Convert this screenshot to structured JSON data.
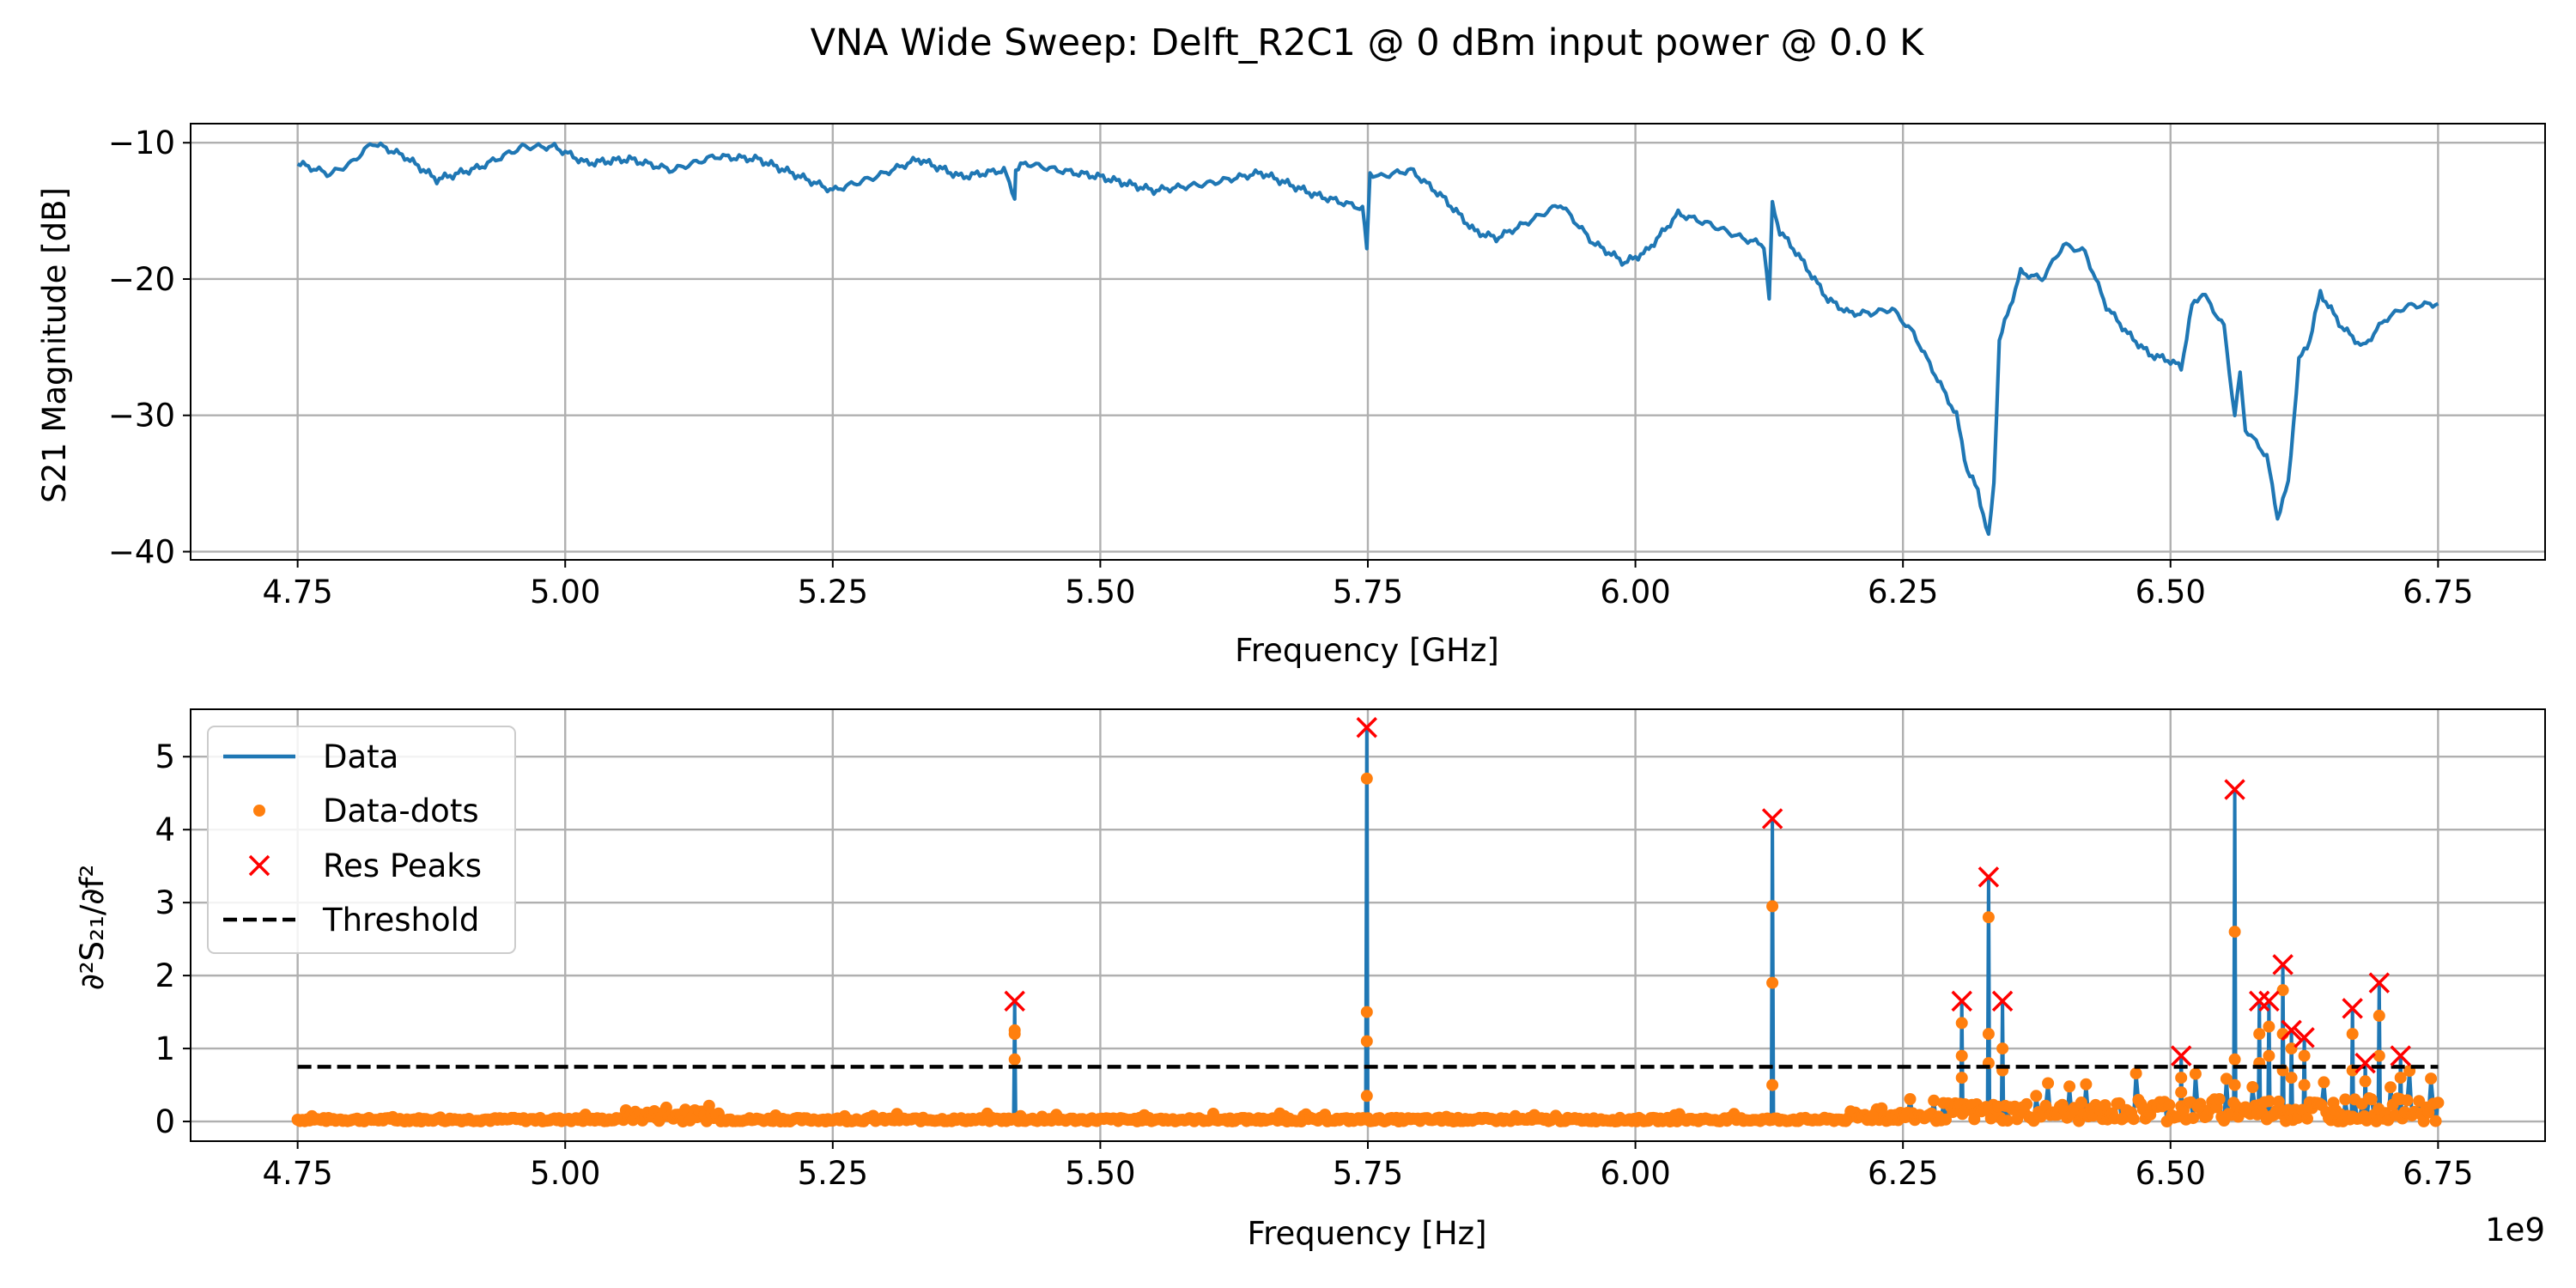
{
  "figure": {
    "title": "VNA Wide Sweep: Delft_R2C1 @ 0 dBm input power @ 0.0 K"
  },
  "colors": {
    "data": "#1f77b4",
    "dots": "#ff7f0e",
    "peaks": "#ff0000",
    "threshold": "#000000",
    "grid": "#b0b0b0"
  },
  "chart_data": [
    {
      "type": "line",
      "xlabel": "Frequency [GHz]",
      "ylabel": "S21 Magnitude [dB]",
      "xlim": [
        4.65,
        6.85
      ],
      "ylim": [
        -40.6,
        -8.6
      ],
      "xticks": [
        4.75,
        5.0,
        5.25,
        5.5,
        5.75,
        6.0,
        6.25,
        6.5,
        6.75
      ],
      "xtick_labels": [
        "4.75",
        "5.00",
        "5.25",
        "5.50",
        "5.75",
        "6.00",
        "6.25",
        "6.50",
        "6.75"
      ],
      "yticks": [
        -40,
        -30,
        -20,
        -10
      ],
      "ytick_labels": [
        "−40",
        "−30",
        "−20",
        "−10"
      ],
      "grid": true,
      "series": [
        {
          "x": [
            4.75,
            4.78,
            4.8,
            4.82,
            4.85,
            4.88,
            4.92,
            4.96,
            4.99,
            5.02,
            5.06,
            5.1,
            5.14,
            5.18,
            5.22,
            5.25,
            5.29,
            5.33,
            5.37,
            5.41,
            5.42,
            5.421,
            5.43,
            5.46,
            5.5,
            5.55,
            5.6,
            5.65,
            5.7,
            5.745,
            5.749,
            5.752,
            5.76,
            5.79,
            5.82,
            5.85,
            5.87,
            5.9,
            5.93,
            5.96,
            5.99,
            6.01,
            6.04,
            6.07,
            6.1,
            6.12,
            6.125,
            6.128,
            6.135,
            6.15,
            6.18,
            6.2,
            6.22,
            6.24,
            6.26,
            6.28,
            6.3,
            6.31,
            6.32,
            6.33,
            6.335,
            6.34,
            6.36,
            6.38,
            6.4,
            6.42,
            6.44,
            6.46,
            6.48,
            6.5,
            6.51,
            6.52,
            6.53,
            6.55,
            6.56,
            6.565,
            6.57,
            6.59,
            6.6,
            6.61,
            6.62,
            6.63,
            6.64,
            6.66,
            6.68,
            6.7,
            6.72,
            6.75
          ],
          "y": [
            -11.5,
            -12.3,
            -11.5,
            -10.0,
            -11.0,
            -12.7,
            -11.8,
            -10.3,
            -10.3,
            -11.5,
            -11.2,
            -12.0,
            -11.0,
            -11.2,
            -12.5,
            -13.5,
            -12.5,
            -11.2,
            -12.5,
            -12.0,
            -14.0,
            -12.0,
            -11.5,
            -12.0,
            -12.5,
            -13.5,
            -13.0,
            -12.2,
            -13.8,
            -14.8,
            -17.8,
            -12.2,
            -12.5,
            -12.0,
            -14.0,
            -16.5,
            -17.0,
            -15.8,
            -14.5,
            -17.3,
            -18.8,
            -18.0,
            -15.2,
            -16.0,
            -17.0,
            -17.5,
            -21.5,
            -14.5,
            -16.5,
            -18.0,
            -21.5,
            -22.5,
            -22.5,
            -22.2,
            -24.0,
            -27.0,
            -30.0,
            -34.0,
            -35.5,
            -39.0,
            -35.0,
            -24.5,
            -19.5,
            -20.0,
            -17.5,
            -18.0,
            -22.0,
            -24.0,
            -25.5,
            -26.0,
            -26.5,
            -22.0,
            -21.0,
            -23.5,
            -30.0,
            -27.0,
            -31.0,
            -33.0,
            -37.5,
            -35.0,
            -26.0,
            -24.5,
            -21.0,
            -23.5,
            -25.0,
            -23.0,
            -22.0,
            -21.8
          ]
        }
      ]
    },
    {
      "type": "line",
      "xlabel": "Frequency [Hz]",
      "ylabel": "∂²S₂₁/∂f²",
      "x_offset_label": "1e9",
      "xlim": [
        4650000000.0,
        6850000000.0
      ],
      "ylim": [
        -0.27,
        5.65
      ],
      "xticks": [
        4750000000.0,
        5000000000.0,
        5250000000.0,
        5500000000.0,
        5750000000.0,
        6000000000.0,
        6250000000.0,
        6500000000.0,
        6750000000.0
      ],
      "xtick_labels": [
        "4.75",
        "5.00",
        "5.25",
        "5.50",
        "5.75",
        "6.00",
        "6.25",
        "6.50",
        "6.75"
      ],
      "yticks": [
        0,
        1,
        2,
        3,
        4,
        5
      ],
      "ytick_labels": [
        "0",
        "1",
        "2",
        "3",
        "4",
        "5"
      ],
      "grid": true,
      "legend": {
        "placement": "upper-left",
        "entries": [
          "Data",
          "Data-dots",
          "Res Peaks",
          "Threshold"
        ]
      },
      "threshold": {
        "name": "Threshold",
        "x": [
          4750000000.0,
          6750000000.0
        ],
        "y": [
          0.75,
          0.75
        ]
      },
      "spikes": [
        {
          "x": 5420000000.0,
          "peak": 1.65,
          "dots": [
            1.25,
            1.2,
            0.85
          ]
        },
        {
          "x": 5749000000.0,
          "peak": 5.4,
          "dots": [
            4.7,
            1.5,
            1.1,
            0.35
          ]
        },
        {
          "x": 6128000000.0,
          "peak": 4.15,
          "dots": [
            2.95,
            1.9,
            0.5
          ]
        },
        {
          "x": 6305000000.0,
          "peak": 1.65,
          "dots": [
            1.35,
            0.9,
            0.6
          ]
        },
        {
          "x": 6330000000.0,
          "peak": 3.35,
          "dots": [
            2.8,
            1.2,
            0.8
          ]
        },
        {
          "x": 6343000000.0,
          "peak": 1.65,
          "dots": [
            1.0,
            0.7
          ]
        },
        {
          "x": 6510000000.0,
          "peak": 0.9,
          "dots": [
            0.6,
            0.4
          ]
        },
        {
          "x": 6560000000.0,
          "peak": 4.55,
          "dots": [
            2.6,
            0.85,
            0.5
          ]
        },
        {
          "x": 6583000000.0,
          "peak": 1.65,
          "dots": [
            1.2,
            0.8
          ]
        },
        {
          "x": 6592000000.0,
          "peak": 1.65,
          "dots": [
            1.3,
            0.9
          ]
        },
        {
          "x": 6605000000.0,
          "peak": 2.15,
          "dots": [
            1.8,
            1.2,
            0.7
          ]
        },
        {
          "x": 6613000000.0,
          "peak": 1.25,
          "dots": [
            1.0,
            0.6
          ]
        },
        {
          "x": 6625000000.0,
          "peak": 1.15,
          "dots": [
            0.9,
            0.5
          ]
        },
        {
          "x": 6670000000.0,
          "peak": 1.55,
          "dots": [
            1.2,
            0.7
          ]
        },
        {
          "x": 6682000000.0,
          "peak": 0.8,
          "dots": [
            0.55
          ]
        },
        {
          "x": 6695000000.0,
          "peak": 1.9,
          "dots": [
            1.45,
            0.9
          ]
        },
        {
          "x": 6715000000.0,
          "peak": 0.9,
          "dots": [
            0.6
          ]
        }
      ]
    }
  ]
}
